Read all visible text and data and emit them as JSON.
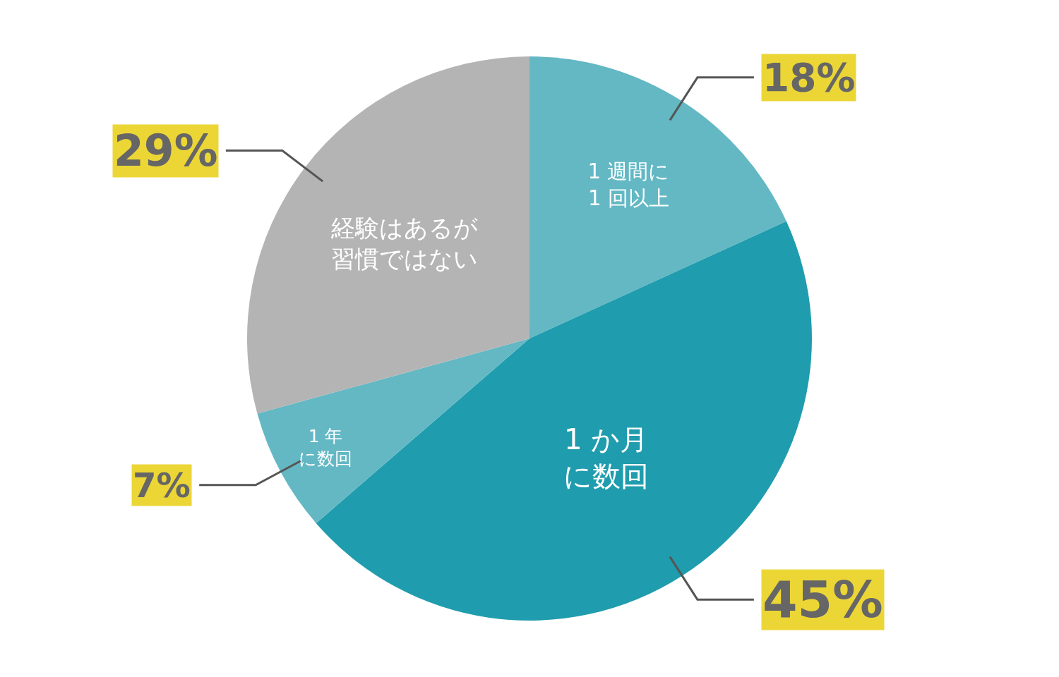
{
  "chart_data": {
    "type": "pie",
    "categories": [
      "1 週間に1 回以上",
      "1 か月に数回",
      "1 年に数回",
      "経験はあるが習慣ではない"
    ],
    "values": [
      18,
      45,
      7,
      29
    ],
    "colors": [
      "#63b8c4",
      "#1f9cad",
      "#63b8c4",
      "#b4b4b4"
    ],
    "value_labels": [
      "18%",
      "45%",
      "7%",
      "29%"
    ]
  }
}
